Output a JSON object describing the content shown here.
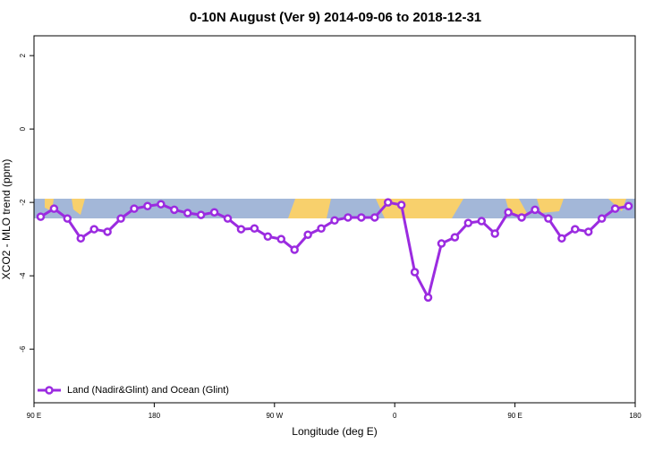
{
  "chart_data": {
    "type": "line",
    "title": "0-10N August (Ver 9)   2014-09-06 to 2018-12-31",
    "x_label": "Longitude (deg E)",
    "y_label": "XCO2 - MLO trend (ppm)",
    "x": [
      95,
      105,
      115,
      125,
      135,
      145,
      155,
      165,
      175,
      185,
      195,
      205,
      215,
      225,
      235,
      245,
      255,
      265,
      275,
      285,
      295,
      305,
      315,
      325,
      335,
      345,
      355,
      365,
      375,
      385,
      395,
      405,
      415,
      425,
      435,
      445,
      455,
      465,
      475,
      485,
      495,
      505,
      515,
      525,
      535
    ],
    "series": [
      {
        "name": "Land (Nadir&Glint) and Ocean (Glint)",
        "color": "#9b2be0",
        "values": [
          -2.39,
          -2.17,
          -2.44,
          -2.98,
          -2.73,
          -2.8,
          -2.44,
          -2.17,
          -2.1,
          -2.05,
          -2.2,
          -2.29,
          -2.34,
          -2.27,
          -2.44,
          -2.73,
          -2.71,
          -2.93,
          -3.0,
          -3.29,
          -2.88,
          -2.71,
          -2.49,
          -2.41,
          -2.41,
          -2.41,
          -2.0,
          -2.07,
          -3.9,
          -4.59,
          -3.12,
          -2.95,
          -2.56,
          -2.51,
          -2.85,
          -2.27,
          -2.41,
          -2.2,
          -2.44,
          -2.98,
          -2.73,
          -2.8,
          -2.44,
          -2.17,
          -2.1
        ]
      }
    ],
    "xlim": [
      90,
      540
    ],
    "xticks": [
      {
        "value": 90,
        "label": "90 E"
      },
      {
        "value": 180,
        "label": "180"
      },
      {
        "value": 270,
        "label": "90 W"
      },
      {
        "value": 360,
        "label": "0"
      },
      {
        "value": 450,
        "label": "90 E"
      },
      {
        "value": 540,
        "label": "180"
      }
    ],
    "ylim": [
      -7.46,
      2.54
    ],
    "yticks": [
      2,
      0,
      -2,
      -4,
      -6
    ],
    "legend": "bottom-left"
  }
}
